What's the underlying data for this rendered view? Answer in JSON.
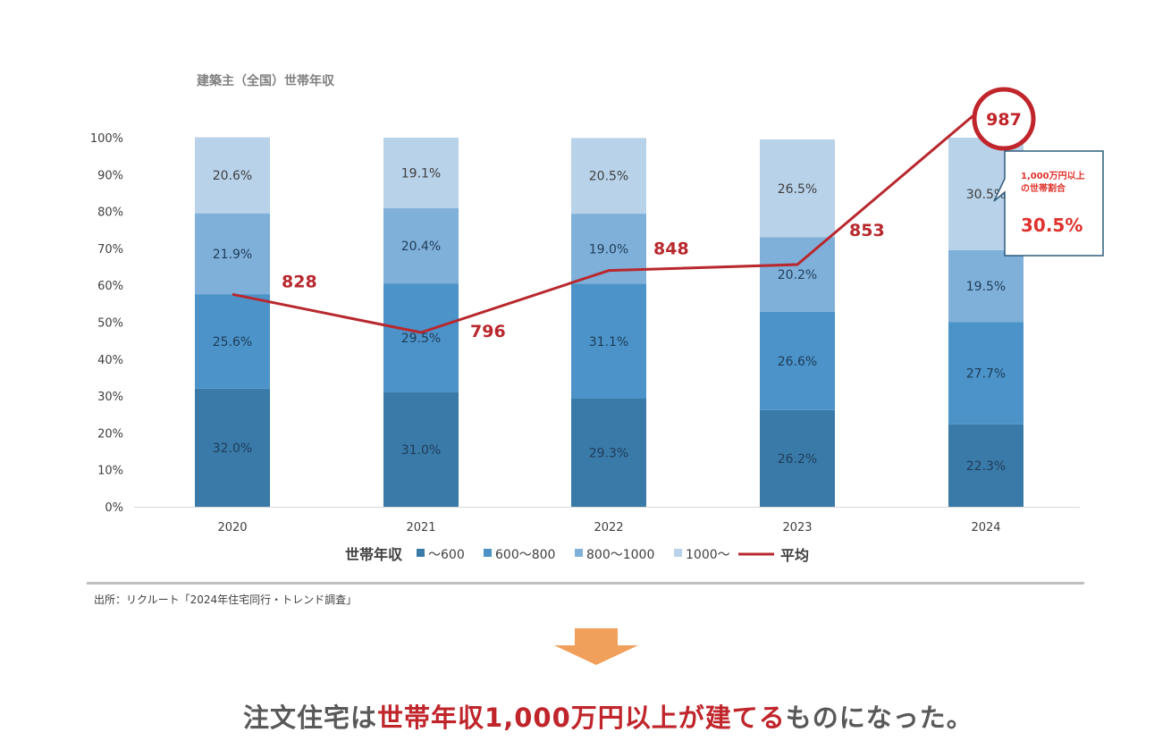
{
  "chart_data": {
    "type": "bar",
    "stacked": true,
    "title": "建築主（全国）世帯年収",
    "categories": [
      "2020",
      "2021",
      "2022",
      "2023",
      "2024"
    ],
    "series": [
      {
        "name": "～600",
        "values": [
          32.0,
          31.0,
          29.3,
          26.2,
          22.3
        ],
        "labels": [
          "32.0%",
          "31.0%",
          "29.3%",
          "26.2%",
          "22.3%"
        ],
        "color": "#3a7aa8"
      },
      {
        "name": "600～800",
        "values": [
          25.6,
          29.5,
          31.1,
          26.6,
          27.7
        ],
        "labels": [
          "25.6%",
          "29.5%",
          "31.1%",
          "26.6%",
          "27.7%"
        ],
        "color": "#4b93c8"
      },
      {
        "name": "800～1000",
        "values": [
          21.9,
          20.4,
          19.0,
          20.2,
          19.5
        ],
        "labels": [
          "21.9%",
          "20.4%",
          "19.0%",
          "20.2%",
          "19.5%"
        ],
        "color": "#7fb0d9"
      },
      {
        "name": "1000～",
        "values": [
          20.6,
          19.1,
          20.5,
          26.5,
          30.5
        ],
        "labels": [
          "20.6%",
          "19.1%",
          "20.5%",
          "26.5%",
          "30.5%"
        ],
        "color": "#b8d2e9"
      }
    ],
    "average": {
      "name": "平均",
      "values": [
        828,
        796,
        848,
        853,
        987
      ],
      "labels": [
        "828",
        "796",
        "848",
        "853",
        "987"
      ],
      "color": "#b8282e"
    },
    "y_ticks": [
      "0%",
      "10%",
      "20%",
      "30%",
      "40%",
      "50%",
      "60%",
      "70%",
      "80%",
      "90%",
      "100%"
    ],
    "ylim": [
      0,
      100
    ],
    "legend_title": "世帯年収",
    "legend_position": "bottom",
    "grid": false
  },
  "callout": {
    "text1": "1,000万円以上",
    "text2": "の世帯割合",
    "value": "30.5%"
  },
  "source": "出所：リクルート「2024年住宅同行・トレンド調査」",
  "conclusion": {
    "part1": "注文住宅は",
    "highlight": "世帯年収1,000万円以上が建てる",
    "part2": "ものになった。"
  }
}
